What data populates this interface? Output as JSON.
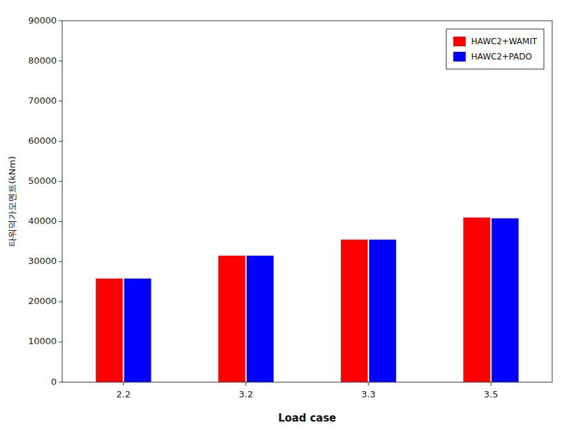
{
  "chart_data": {
    "type": "bar",
    "categories": [
      "2.2",
      "3.2",
      "3.3",
      "3.5"
    ],
    "series": [
      {
        "name": "HAWC2+WAMIT",
        "color": "#FF0000",
        "values": [
          25800,
          31500,
          35500,
          41000
        ]
      },
      {
        "name": "HAWC2+PADO",
        "color": "#0000FF",
        "values": [
          25800,
          31500,
          35500,
          40800
        ]
      }
    ],
    "xlabel": "Load case",
    "ylabel": "타워덕가모멘트(kNm)",
    "ylim": [
      0,
      90000
    ],
    "yticks": [
      0,
      10000,
      20000,
      30000,
      40000,
      50000,
      60000,
      70000,
      80000,
      90000
    ],
    "grid": false,
    "legend": "upper right"
  }
}
